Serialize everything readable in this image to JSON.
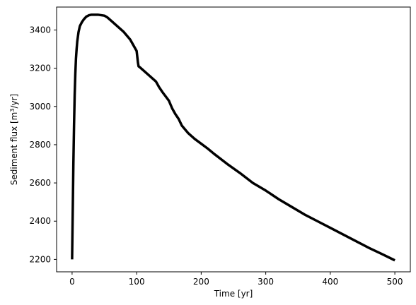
{
  "chart_data": {
    "type": "line",
    "title": "",
    "xlabel": "Time [yr]",
    "ylabel_prefix": "Sediment flux [m",
    "ylabel_sup": "3",
    "ylabel_suffix": "/yr]",
    "xlim": [
      -24,
      524
    ],
    "ylim": [
      2135,
      3520
    ],
    "xticks": [
      0,
      100,
      200,
      300,
      400,
      500
    ],
    "xtick_labels": [
      "0",
      "100",
      "200",
      "300",
      "400",
      "500"
    ],
    "yticks": [
      2200,
      2400,
      2600,
      2800,
      3000,
      3200,
      3400
    ],
    "ytick_labels": [
      "2200",
      "2400",
      "2600",
      "2800",
      "3000",
      "3200",
      "3400"
    ],
    "grid": false,
    "series": [
      {
        "color": "#000000",
        "x": [
          0,
          1,
          2,
          3,
          4,
          5,
          6,
          7,
          8,
          10,
          12,
          15,
          18,
          22,
          26,
          30,
          35,
          40,
          50,
          55,
          60,
          70,
          80,
          90,
          95,
          100,
          101,
          102,
          103,
          105,
          110,
          120,
          130,
          135,
          140,
          150,
          155,
          160,
          165,
          170,
          180,
          190,
          200,
          210,
          220,
          240,
          260,
          280,
          300,
          320,
          340,
          360,
          380,
          400,
          420,
          440,
          460,
          480,
          500
        ],
        "y": [
          2200,
          2450,
          2700,
          2900,
          3060,
          3170,
          3250,
          3300,
          3340,
          3390,
          3420,
          3440,
          3455,
          3470,
          3477,
          3480,
          3480,
          3480,
          3475,
          3465,
          3450,
          3420,
          3390,
          3350,
          3320,
          3290,
          3260,
          3230,
          3210,
          3205,
          3190,
          3160,
          3130,
          3100,
          3075,
          3030,
          2990,
          2960,
          2935,
          2900,
          2860,
          2830,
          2805,
          2780,
          2752,
          2700,
          2652,
          2600,
          2560,
          2515,
          2475,
          2435,
          2400,
          2365,
          2330,
          2295,
          2260,
          2228,
          2195
        ]
      }
    ]
  }
}
